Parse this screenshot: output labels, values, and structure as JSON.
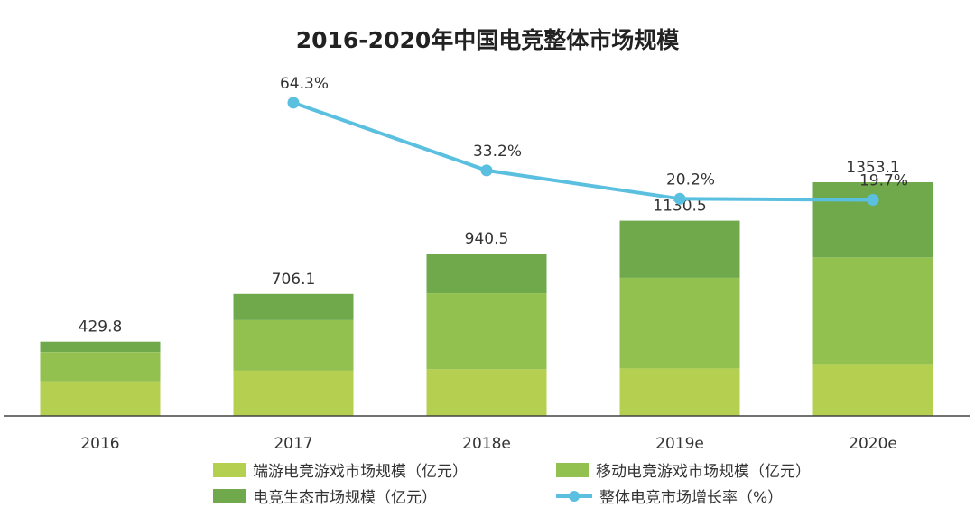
{
  "chart_data": {
    "type": "bar",
    "stacked": true,
    "title": "2016-2020年中国电竞整体市场规模",
    "categories": [
      "2016",
      "2017",
      "2018e",
      "2019e",
      "2020e"
    ],
    "series": [
      {
        "name": "端游电竞游戏市场规模（亿元）",
        "color": "#b5cf50",
        "values": [
          200.0,
          262.0,
          270.0,
          275.0,
          301.0
        ]
      },
      {
        "name": "移动电竞游戏市场规模（亿元）",
        "color": "#92c150",
        "values": [
          170.0,
          292.0,
          440.0,
          525.0,
          617.0
        ]
      },
      {
        "name": "电竞生态市场规模（亿元）",
        "color": "#6fa94c",
        "values": [
          59.8,
          152.1,
          230.5,
          330.5,
          435.1
        ]
      }
    ],
    "totals": [
      "429.8",
      "706.1",
      "940.5",
      "1130.5",
      "1353.1"
    ],
    "line_series": {
      "name": "整体电竞市场增长率（%）",
      "color": "#5bc0e0",
      "values": [
        null,
        64.3,
        33.2,
        20.2,
        19.7
      ],
      "labels": [
        "",
        "64.3%",
        "33.2%",
        "20.2%",
        "19.7%"
      ]
    },
    "xlabel": "",
    "ylabel": "",
    "ylim": [
      0,
      1353.1
    ],
    "grid": false,
    "legend_position": "bottom"
  }
}
